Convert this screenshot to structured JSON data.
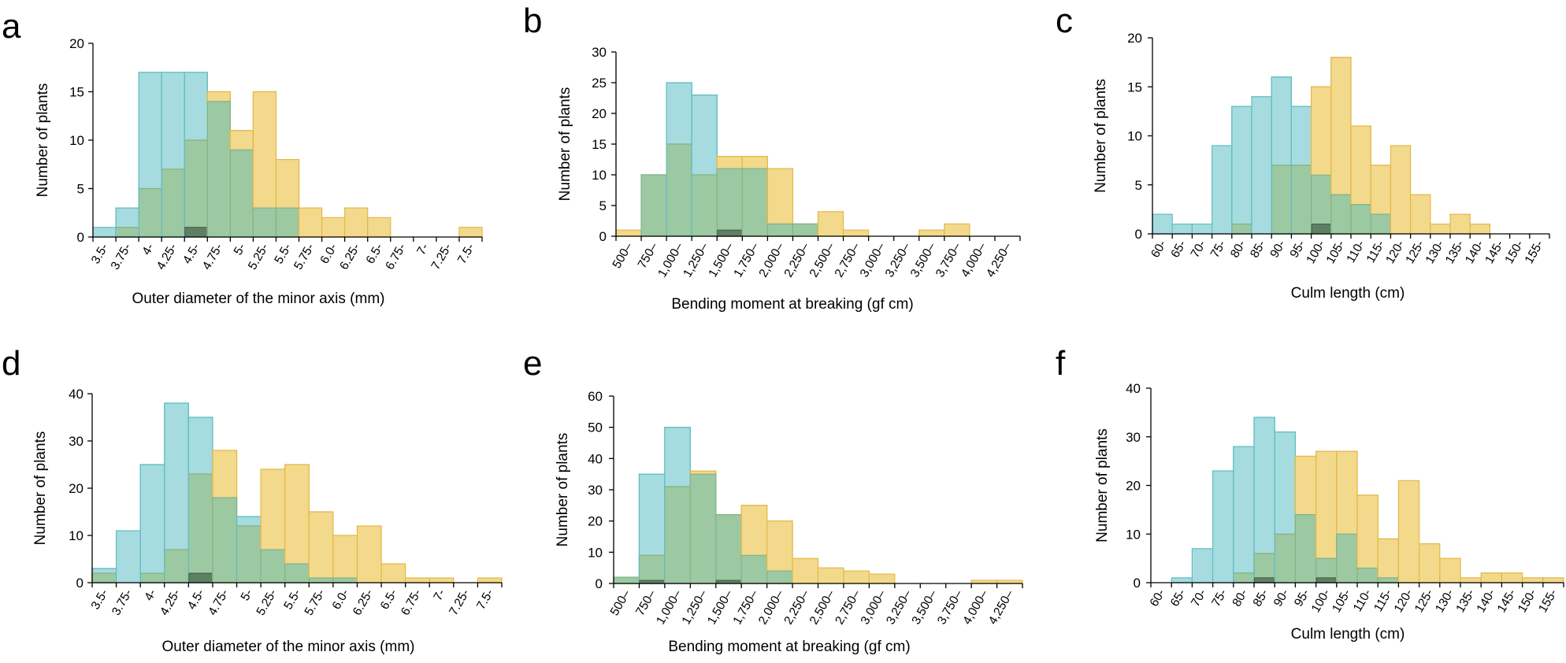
{
  "colors": {
    "yellow_fill": "#F3D98B",
    "yellow_stroke": "#E3B84A",
    "cyan_fill": "#A6DCDF",
    "cyan_stroke": "#62BEC4",
    "overlap_fill": "#9CC8A2",
    "overlap_stroke": "#7FB38A",
    "triple_fill": "#5F7F65"
  },
  "chart_data": [
    {
      "panel": "a",
      "type": "bar",
      "ylabel": "Number of plants",
      "xlabel": "Outer diameter of the minor axis (mm)",
      "ylim": [
        0,
        20
      ],
      "yticks": [
        0,
        5,
        10,
        15,
        20
      ],
      "categories": [
        "3.5-",
        "3.75-",
        "4-",
        "4.25-",
        "4.5-",
        "4.75-",
        "5-",
        "5.25-",
        "5.5-",
        "5.75-",
        "6.0-",
        "6.25-",
        "6.5-",
        "6.75-",
        "7-",
        "7.25-",
        "7.5-"
      ],
      "series": [
        {
          "name": "cyan",
          "values": [
            1,
            3,
            17,
            17,
            17,
            14,
            9,
            3,
            3,
            0,
            0,
            0,
            0,
            0,
            0,
            0,
            0
          ]
        },
        {
          "name": "yellow",
          "values": [
            0,
            1,
            5,
            7,
            10,
            15,
            11,
            15,
            8,
            3,
            2,
            3,
            2,
            0,
            0,
            0,
            1
          ]
        },
        {
          "name": "dark",
          "values": [
            0,
            0,
            0,
            0,
            1,
            0,
            0,
            0,
            0,
            0,
            0,
            0,
            0,
            0,
            0,
            0,
            0
          ]
        }
      ]
    },
    {
      "panel": "b",
      "type": "bar",
      "ylabel": "Number of plants",
      "xlabel": "Bending moment at breaking (gf cm)",
      "ylim": [
        0,
        30
      ],
      "yticks": [
        0,
        5,
        10,
        15,
        20,
        25,
        30
      ],
      "categories": [
        "500–",
        "750–",
        "1,000–",
        "1,250–",
        "1,500–",
        "1,750–",
        "2,000–",
        "2,250–",
        "2,500–",
        "2,750–",
        "3,000–",
        "3,250–",
        "3,500–",
        "3,750–",
        "4,000–",
        "4,250–"
      ],
      "series": [
        {
          "name": "cyan",
          "values": [
            0,
            10,
            25,
            23,
            11,
            11,
            2,
            2,
            0,
            0,
            0,
            0,
            0,
            0,
            0,
            0
          ]
        },
        {
          "name": "yellow",
          "values": [
            1,
            10,
            15,
            10,
            13,
            13,
            11,
            2,
            4,
            1,
            0,
            0,
            1,
            2,
            0,
            0
          ]
        },
        {
          "name": "dark",
          "values": [
            0,
            0,
            0,
            0,
            1,
            0,
            0,
            0,
            0,
            0,
            0,
            0,
            0,
            0,
            0,
            0
          ]
        }
      ]
    },
    {
      "panel": "c",
      "type": "bar",
      "ylabel": "Number of plants",
      "xlabel": "Culm length (cm)",
      "ylim": [
        0,
        20
      ],
      "yticks": [
        0,
        5,
        10,
        15,
        20
      ],
      "categories": [
        "60-",
        "65-",
        "70-",
        "75-",
        "80-",
        "85-",
        "90-",
        "95-",
        "100-",
        "105-",
        "110-",
        "115-",
        "120-",
        "125-",
        "130-",
        "135-",
        "140-",
        "145-",
        "150-",
        "155-"
      ],
      "series": [
        {
          "name": "cyan",
          "values": [
            2,
            1,
            1,
            9,
            13,
            14,
            16,
            13,
            6,
            4,
            3,
            2,
            0,
            0,
            0,
            0,
            0,
            0,
            0,
            0
          ]
        },
        {
          "name": "yellow",
          "values": [
            0,
            0,
            0,
            0,
            1,
            0,
            7,
            7,
            15,
            18,
            11,
            7,
            9,
            4,
            1,
            2,
            1,
            0,
            0,
            0
          ]
        },
        {
          "name": "dark",
          "values": [
            0,
            0,
            0,
            0,
            0,
            0,
            0,
            0,
            1,
            0,
            0,
            0,
            0,
            0,
            0,
            0,
            0,
            0,
            0,
            0
          ]
        }
      ]
    },
    {
      "panel": "d",
      "type": "bar",
      "ylabel": "Number of plants",
      "xlabel": "Outer diameter of the minor axis (mm)",
      "ylim": [
        0,
        40
      ],
      "yticks": [
        0,
        10,
        20,
        30,
        40
      ],
      "categories": [
        "3.5-",
        "3.75-",
        "4-",
        "4.25-",
        "4.5-",
        "4.75-",
        "5-",
        "5.25-",
        "5.5-",
        "5.75-",
        "6.0-",
        "6.25-",
        "6.5-",
        "6.75-",
        "7-",
        "7.25-",
        "7.5-"
      ],
      "series": [
        {
          "name": "cyan",
          "values": [
            3,
            11,
            25,
            38,
            35,
            18,
            14,
            7,
            4,
            1,
            1,
            0,
            0,
            0,
            0,
            0,
            0
          ]
        },
        {
          "name": "yellow",
          "values": [
            2,
            0,
            2,
            7,
            23,
            28,
            12,
            24,
            25,
            15,
            10,
            12,
            4,
            1,
            1,
            0,
            1
          ]
        },
        {
          "name": "dark",
          "values": [
            0,
            0,
            0,
            0,
            2,
            0,
            0,
            0,
            0,
            0,
            0,
            0,
            0,
            0,
            0,
            0,
            0
          ]
        }
      ]
    },
    {
      "panel": "e",
      "type": "bar",
      "ylabel": "Number of plants",
      "xlabel": "Bending moment at breaking (gf cm)",
      "ylim": [
        0,
        60
      ],
      "yticks": [
        0,
        10,
        20,
        30,
        40,
        50,
        60
      ],
      "categories": [
        "500–",
        "750–",
        "1,000–",
        "1,250–",
        "1,500–",
        "1,750–",
        "2,000–",
        "2,250–",
        "2,500–",
        "2,750–",
        "3,000–",
        "3,250–",
        "3,500–",
        "3,750–",
        "4,000–",
        "4,250–"
      ],
      "series": [
        {
          "name": "cyan",
          "values": [
            2,
            35,
            50,
            35,
            22,
            9,
            4,
            0,
            0,
            0,
            0,
            0,
            0,
            0,
            0,
            0
          ]
        },
        {
          "name": "yellow",
          "values": [
            2,
            9,
            31,
            36,
            22,
            25,
            20,
            8,
            5,
            4,
            3,
            0,
            0,
            0,
            1,
            1
          ]
        },
        {
          "name": "dark",
          "values": [
            0,
            1,
            0,
            0,
            1,
            0,
            0,
            0,
            0,
            0,
            0,
            0,
            0,
            0,
            0,
            0
          ]
        }
      ]
    },
    {
      "panel": "f",
      "type": "bar",
      "ylabel": "Number of plants",
      "xlabel": "Culm length (cm)",
      "ylim": [
        0,
        40
      ],
      "yticks": [
        0,
        10,
        20,
        30,
        40
      ],
      "categories": [
        "60-",
        "65-",
        "70-",
        "75-",
        "80-",
        "85-",
        "90-",
        "95-",
        "100-",
        "105-",
        "110-",
        "115-",
        "120-",
        "125-",
        "130-",
        "135-",
        "140-",
        "145-",
        "150-",
        "155-"
      ],
      "series": [
        {
          "name": "cyan",
          "values": [
            0,
            1,
            7,
            23,
            28,
            34,
            31,
            14,
            5,
            10,
            3,
            1,
            0,
            0,
            0,
            0,
            0,
            0,
            0,
            0
          ]
        },
        {
          "name": "yellow",
          "values": [
            0,
            0,
            0,
            0,
            2,
            6,
            10,
            26,
            27,
            27,
            18,
            9,
            21,
            8,
            5,
            1,
            2,
            2,
            1,
            1
          ]
        },
        {
          "name": "dark",
          "values": [
            0,
            0,
            0,
            0,
            0,
            1,
            0,
            0,
            1,
            0,
            0,
            0,
            0,
            0,
            0,
            0,
            0,
            0,
            0,
            0
          ]
        }
      ]
    }
  ]
}
